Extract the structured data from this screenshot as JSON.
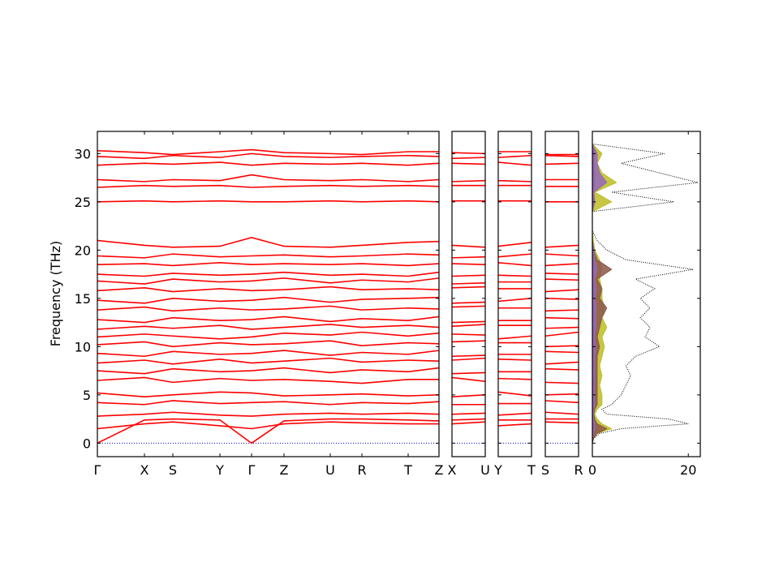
{
  "chart_data": [
    {
      "type": "bands",
      "ylabel": "Frequency (THz)",
      "color": "#ff0000",
      "zero_line_color": "#0000cc",
      "ylim": [
        -1.4,
        32.3
      ],
      "yticks": [
        0,
        5,
        10,
        15,
        20,
        25,
        30
      ],
      "xlim": [
        0,
        4.21
      ],
      "xticks": [
        {
          "value": 0,
          "label": "Γ"
        },
        {
          "value": 0.58,
          "label": "X"
        },
        {
          "value": 0.93,
          "label": "S"
        },
        {
          "value": 1.51,
          "label": "Y"
        },
        {
          "value": 1.9,
          "label": "Γ"
        },
        {
          "value": 2.3,
          "label": "Z"
        },
        {
          "value": 2.87,
          "label": "U"
        },
        {
          "value": 3.26,
          "label": "R"
        },
        {
          "value": 3.83,
          "label": "T"
        },
        {
          "value": 4.21,
          "label": "Z"
        }
      ],
      "x": [
        0,
        0.58,
        0.93,
        1.51,
        1.9,
        2.3,
        2.87,
        3.26,
        3.83,
        4.21
      ],
      "series": [
        {
          "values": [
            0,
            2.4,
            2.5,
            2.4,
            0,
            2.3,
            2.5,
            2.5,
            2.4,
            2.3
          ]
        },
        {
          "values": [
            1.5,
            2.0,
            2.2,
            1.8,
            1.5,
            2.0,
            2.2,
            2.1,
            2.0,
            2.0
          ]
        },
        {
          "values": [
            2.8,
            3.0,
            3.2,
            2.9,
            2.8,
            3.0,
            3.1,
            3.0,
            3.1,
            3.0
          ]
        },
        {
          "values": [
            4.2,
            4.0,
            4.4,
            4.1,
            4.2,
            4.3,
            4.0,
            4.2,
            4.1,
            4.3
          ]
        },
        {
          "values": [
            5.2,
            4.8,
            5.0,
            5.3,
            5.2,
            4.9,
            5.0,
            5.1,
            4.9,
            5.0
          ]
        },
        {
          "values": [
            6.5,
            6.8,
            6.3,
            6.7,
            6.5,
            6.6,
            6.4,
            6.2,
            6.6,
            6.6
          ]
        },
        {
          "values": [
            7.5,
            7.2,
            7.7,
            7.4,
            7.5,
            7.8,
            7.3,
            7.6,
            7.4,
            7.8
          ]
        },
        {
          "values": [
            8.3,
            8.6,
            8.2,
            8.7,
            8.3,
            8.5,
            8.8,
            8.4,
            8.6,
            8.5
          ]
        },
        {
          "values": [
            9.3,
            9.0,
            9.5,
            9.2,
            9.3,
            9.6,
            9.1,
            9.4,
            9.2,
            9.6
          ]
        },
        {
          "values": [
            10.2,
            10.5,
            10.0,
            10.4,
            10.2,
            10.3,
            10.6,
            10.1,
            10.4,
            10.3
          ]
        },
        {
          "values": [
            11.0,
            11.3,
            11.1,
            10.8,
            11.0,
            11.4,
            11.2,
            11.5,
            11.1,
            11.4
          ]
        },
        {
          "values": [
            11.8,
            12.1,
            11.9,
            12.2,
            11.8,
            12.0,
            12.3,
            12.0,
            12.2,
            12.0
          ]
        },
        {
          "values": [
            12.8,
            12.5,
            13.0,
            12.7,
            12.8,
            13.1,
            12.6,
            12.9,
            12.7,
            13.1
          ]
        },
        {
          "values": [
            13.8,
            14.1,
            13.7,
            14.0,
            13.8,
            13.9,
            14.2,
            13.8,
            14.0,
            13.9
          ]
        },
        {
          "values": [
            14.8,
            14.5,
            15.0,
            14.7,
            14.8,
            15.1,
            14.6,
            14.9,
            15.0,
            15.1
          ]
        },
        {
          "values": [
            15.8,
            16.1,
            15.7,
            16.0,
            15.8,
            15.9,
            16.2,
            15.9,
            16.0,
            15.9
          ]
        },
        {
          "values": [
            16.8,
            16.5,
            17.0,
            16.7,
            16.8,
            17.1,
            16.6,
            16.9,
            16.7,
            17.1
          ]
        },
        {
          "values": [
            17.5,
            17.3,
            17.6,
            17.4,
            17.5,
            17.7,
            17.4,
            17.5,
            17.3,
            17.7
          ]
        },
        {
          "values": [
            18.5,
            18.6,
            18.4,
            18.7,
            18.5,
            18.6,
            18.5,
            18.6,
            18.4,
            18.6
          ]
        },
        {
          "values": [
            19.4,
            19.2,
            19.6,
            19.3,
            19.4,
            19.5,
            19.3,
            19.4,
            19.6,
            19.5
          ]
        },
        {
          "values": [
            21.0,
            20.5,
            20.3,
            20.4,
            21.3,
            20.4,
            20.3,
            20.5,
            20.8,
            20.9
          ]
        },
        {
          "values": [
            25.0,
            25.1,
            25.0,
            25.1,
            25.0,
            25.0,
            25.1,
            25.0,
            25.1,
            25.0
          ]
        },
        {
          "values": [
            26.5,
            26.7,
            26.6,
            26.7,
            26.5,
            26.6,
            26.7,
            26.6,
            26.7,
            26.6
          ]
        },
        {
          "values": [
            27.3,
            27.1,
            27.3,
            27.2,
            27.8,
            27.3,
            27.2,
            27.3,
            27.1,
            27.3
          ]
        },
        {
          "values": [
            28.8,
            29.0,
            28.9,
            29.1,
            28.8,
            29.0,
            28.9,
            29.0,
            28.8,
            29.0
          ]
        },
        {
          "values": [
            29.7,
            29.5,
            29.8,
            29.6,
            30.0,
            29.7,
            29.6,
            29.7,
            29.8,
            29.7
          ]
        },
        {
          "values": [
            30.3,
            30.1,
            29.9,
            30.2,
            30.4,
            30.1,
            30.0,
            29.9,
            30.2,
            30.2
          ]
        }
      ]
    },
    {
      "type": "bands",
      "xlim": [
        0,
        1
      ],
      "x": [
        0,
        1
      ],
      "xticks": [
        {
          "value": 0,
          "label": "X"
        },
        {
          "value": 1,
          "label": "U"
        }
      ],
      "series": [
        {
          "values": [
            2.4,
            2.5
          ]
        },
        {
          "values": [
            2.0,
            2.2
          ]
        },
        {
          "values": [
            3.0,
            3.1
          ]
        },
        {
          "values": [
            4.0,
            4.0
          ]
        },
        {
          "values": [
            4.8,
            5.0
          ]
        },
        {
          "values": [
            6.8,
            6.4
          ]
        },
        {
          "values": [
            7.2,
            7.3
          ]
        },
        {
          "values": [
            8.6,
            8.8
          ]
        },
        {
          "values": [
            9.0,
            9.1
          ]
        },
        {
          "values": [
            10.5,
            10.6
          ]
        },
        {
          "values": [
            11.3,
            11.2
          ]
        },
        {
          "values": [
            12.1,
            12.3
          ]
        },
        {
          "values": [
            12.5,
            12.6
          ]
        },
        {
          "values": [
            14.1,
            14.2
          ]
        },
        {
          "values": [
            14.5,
            14.6
          ]
        },
        {
          "values": [
            16.1,
            16.2
          ]
        },
        {
          "values": [
            16.5,
            16.6
          ]
        },
        {
          "values": [
            17.3,
            17.4
          ]
        },
        {
          "values": [
            18.6,
            18.5
          ]
        },
        {
          "values": [
            19.2,
            19.3
          ]
        },
        {
          "values": [
            20.5,
            20.3
          ]
        },
        {
          "values": [
            25.1,
            25.1
          ]
        },
        {
          "values": [
            26.7,
            26.7
          ]
        },
        {
          "values": [
            27.1,
            27.2
          ]
        },
        {
          "values": [
            29.0,
            28.9
          ]
        },
        {
          "values": [
            29.5,
            29.6
          ]
        },
        {
          "values": [
            30.1,
            30.0
          ]
        }
      ]
    },
    {
      "type": "bands",
      "xlim": [
        0,
        1
      ],
      "x": [
        0,
        1
      ],
      "xticks": [
        {
          "value": 0,
          "label": "Y"
        },
        {
          "value": 1,
          "label": "T"
        }
      ],
      "series": [
        {
          "values": [
            2.4,
            2.4
          ]
        },
        {
          "values": [
            1.8,
            2.0
          ]
        },
        {
          "values": [
            2.9,
            3.1
          ]
        },
        {
          "values": [
            4.1,
            4.1
          ]
        },
        {
          "values": [
            5.3,
            4.9
          ]
        },
        {
          "values": [
            6.7,
            6.6
          ]
        },
        {
          "values": [
            7.4,
            7.4
          ]
        },
        {
          "values": [
            8.7,
            8.6
          ]
        },
        {
          "values": [
            9.2,
            9.2
          ]
        },
        {
          "values": [
            10.4,
            10.4
          ]
        },
        {
          "values": [
            10.8,
            11.1
          ]
        },
        {
          "values": [
            12.2,
            12.2
          ]
        },
        {
          "values": [
            12.7,
            12.7
          ]
        },
        {
          "values": [
            14.0,
            14.0
          ]
        },
        {
          "values": [
            14.7,
            15.0
          ]
        },
        {
          "values": [
            16.0,
            16.0
          ]
        },
        {
          "values": [
            16.7,
            16.7
          ]
        },
        {
          "values": [
            17.4,
            17.3
          ]
        },
        {
          "values": [
            18.7,
            18.4
          ]
        },
        {
          "values": [
            19.3,
            19.6
          ]
        },
        {
          "values": [
            20.4,
            20.8
          ]
        },
        {
          "values": [
            25.1,
            25.1
          ]
        },
        {
          "values": [
            26.7,
            26.7
          ]
        },
        {
          "values": [
            27.2,
            27.1
          ]
        },
        {
          "values": [
            29.1,
            28.8
          ]
        },
        {
          "values": [
            29.6,
            29.8
          ]
        },
        {
          "values": [
            30.2,
            30.2
          ]
        }
      ]
    },
    {
      "type": "bands",
      "xlim": [
        0,
        1
      ],
      "x": [
        0,
        1
      ],
      "xticks": [
        {
          "value": 0,
          "label": "S"
        },
        {
          "value": 1,
          "label": "R"
        }
      ],
      "series": [
        {
          "values": [
            2.5,
            2.5
          ]
        },
        {
          "values": [
            2.2,
            2.1
          ]
        },
        {
          "values": [
            3.2,
            3.0
          ]
        },
        {
          "values": [
            4.4,
            4.2
          ]
        },
        {
          "values": [
            5.0,
            5.1
          ]
        },
        {
          "values": [
            6.3,
            6.2
          ]
        },
        {
          "values": [
            7.7,
            7.6
          ]
        },
        {
          "values": [
            8.2,
            8.4
          ]
        },
        {
          "values": [
            9.5,
            9.4
          ]
        },
        {
          "values": [
            10.0,
            10.1
          ]
        },
        {
          "values": [
            11.1,
            11.5
          ]
        },
        {
          "values": [
            11.9,
            12.0
          ]
        },
        {
          "values": [
            13.0,
            12.9
          ]
        },
        {
          "values": [
            13.7,
            13.8
          ]
        },
        {
          "values": [
            15.0,
            14.9
          ]
        },
        {
          "values": [
            15.7,
            15.9
          ]
        },
        {
          "values": [
            17.0,
            16.9
          ]
        },
        {
          "values": [
            17.6,
            17.5
          ]
        },
        {
          "values": [
            18.4,
            18.6
          ]
        },
        {
          "values": [
            19.6,
            19.4
          ]
        },
        {
          "values": [
            20.3,
            20.5
          ]
        },
        {
          "values": [
            25.0,
            25.0
          ]
        },
        {
          "values": [
            26.6,
            26.6
          ]
        },
        {
          "values": [
            27.3,
            27.3
          ]
        },
        {
          "values": [
            28.9,
            29.0
          ]
        },
        {
          "values": [
            29.8,
            29.7
          ]
        },
        {
          "values": [
            29.9,
            29.9
          ]
        }
      ]
    },
    {
      "type": "dos",
      "xlim": [
        0,
        22.5
      ],
      "xticks": [
        0,
        20
      ],
      "y": [
        0,
        0.5,
        1,
        1.5,
        2,
        2.5,
        3,
        3.5,
        4,
        5,
        6,
        7,
        8,
        9,
        10,
        11,
        12,
        13,
        14,
        15,
        16,
        17,
        18,
        19,
        20,
        21,
        22,
        24,
        25,
        26,
        27,
        28,
        29,
        30,
        31
      ],
      "series": [
        {
          "color": "#000000",
          "values": [
            0,
            0.3,
            1.5,
            6,
            20,
            16,
            3,
            2,
            4,
            6,
            7,
            8,
            7,
            9,
            14,
            11,
            12,
            10,
            12,
            10,
            13,
            9,
            21,
            7,
            3,
            1,
            0,
            0,
            17,
            4,
            22,
            14,
            6,
            15,
            0
          ]
        },
        {
          "color": "#bcbd22",
          "values": [
            0,
            0.2,
            1,
            4,
            2,
            1,
            0.5,
            1,
            2,
            2,
            1.5,
            2,
            1.5,
            2,
            2.5,
            2,
            3,
            2,
            2.5,
            2,
            2,
            1.5,
            2,
            1.5,
            0.5,
            0.2,
            0,
            0,
            4,
            0.5,
            5,
            2,
            1,
            2,
            0
          ]
        },
        {
          "color": "#8c564b",
          "values": [
            0,
            0.2,
            1,
            3,
            1,
            0.5,
            0.3,
            0.5,
            1,
            1,
            1,
            1,
            1,
            1,
            1.5,
            1,
            1.5,
            2,
            3,
            1.5,
            2,
            1,
            4,
            1,
            0.3,
            0,
            0,
            0,
            0.5,
            0.2,
            0.5,
            0.5,
            0.3,
            0.5,
            0
          ]
        },
        {
          "color": "#9467bd",
          "values": [
            0,
            0,
            0.2,
            0.5,
            0.5,
            0.3,
            0.2,
            0.3,
            0.5,
            0.5,
            0.5,
            0.5,
            0.5,
            0.5,
            0.7,
            0.5,
            0.7,
            0.7,
            0.8,
            0.6,
            0.8,
            0.5,
            1,
            0.5,
            0.3,
            0,
            0,
            0,
            0.5,
            0.3,
            3,
            1.5,
            1,
            1,
            0
          ]
        }
      ]
    }
  ]
}
